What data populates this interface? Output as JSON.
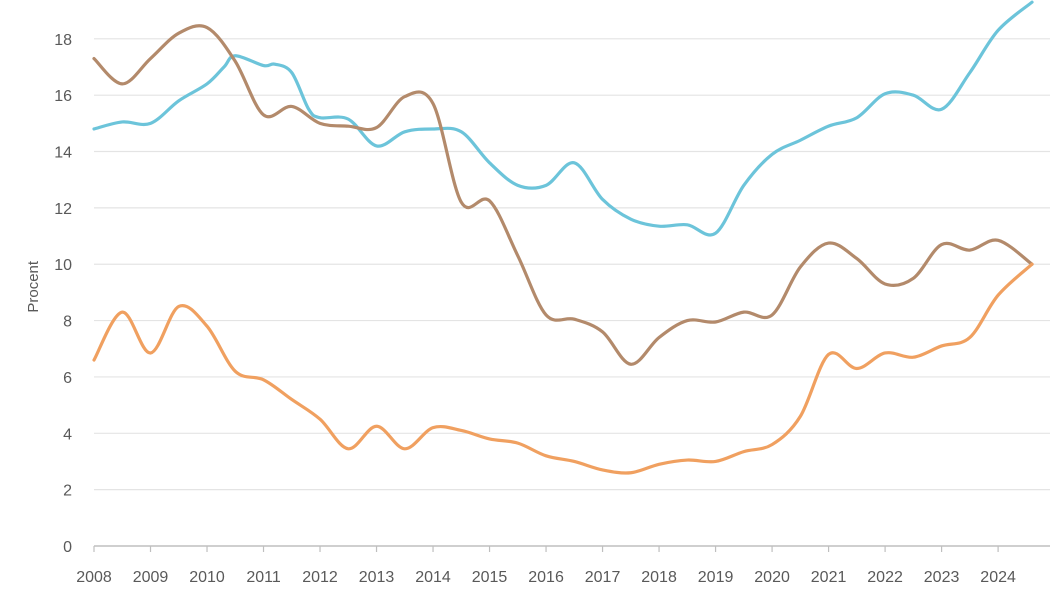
{
  "chart_data": {
    "type": "line",
    "title": "",
    "xlabel": "",
    "ylabel": "Procent",
    "xlim": [
      2008,
      2024.6
    ],
    "ylim": [
      0,
      19.2
    ],
    "xticks": [
      2008,
      2009,
      2010,
      2011,
      2012,
      2013,
      2014,
      2015,
      2016,
      2017,
      2018,
      2019,
      2020,
      2021,
      2022,
      2023,
      2024
    ],
    "xtick_labels": [
      "2008",
      "2009",
      "2010",
      "2011",
      "2012",
      "2013",
      "2014",
      "2015",
      "2016",
      "2017",
      "2018",
      "2019",
      "2020",
      "2021",
      "2022",
      "2023",
      "2024"
    ],
    "yticks": [
      0,
      2,
      4,
      6,
      8,
      10,
      12,
      14,
      16,
      18
    ],
    "ytick_labels": [
      "0",
      "2",
      "4",
      "6",
      "8",
      "10",
      "12",
      "14",
      "16",
      "18"
    ],
    "grid": "horizontal",
    "legend": "none",
    "series": [
      {
        "color": "#6cc4da",
        "points": [
          [
            2008,
            14.8
          ],
          [
            2008.5,
            15.05
          ],
          [
            2009,
            15.0
          ],
          [
            2009.5,
            15.8
          ],
          [
            2010,
            16.4
          ],
          [
            2010.3,
            17.0
          ],
          [
            2010.5,
            17.4
          ],
          [
            2011,
            17.05
          ],
          [
            2011.2,
            17.1
          ],
          [
            2011.5,
            16.8
          ],
          [
            2011.8,
            15.5
          ],
          [
            2012,
            15.2
          ],
          [
            2012.5,
            15.15
          ],
          [
            2013,
            14.2
          ],
          [
            2013.5,
            14.7
          ],
          [
            2014,
            14.8
          ],
          [
            2014.5,
            14.7
          ],
          [
            2015,
            13.6
          ],
          [
            2015.5,
            12.8
          ],
          [
            2016,
            12.8
          ],
          [
            2016.5,
            13.6
          ],
          [
            2017,
            12.3
          ],
          [
            2017.5,
            11.6
          ],
          [
            2018,
            11.35
          ],
          [
            2018.5,
            11.4
          ],
          [
            2019,
            11.1
          ],
          [
            2019.5,
            12.8
          ],
          [
            2020,
            13.9
          ],
          [
            2020.5,
            14.4
          ],
          [
            2021,
            14.9
          ],
          [
            2021.5,
            15.2
          ],
          [
            2022,
            16.05
          ],
          [
            2022.5,
            16.0
          ],
          [
            2023,
            15.5
          ],
          [
            2023.5,
            16.8
          ],
          [
            2024,
            18.3
          ],
          [
            2024.6,
            19.3
          ]
        ]
      },
      {
        "color": "#b38a6b",
        "points": [
          [
            2008,
            17.3
          ],
          [
            2008.5,
            16.4
          ],
          [
            2009,
            17.3
          ],
          [
            2009.5,
            18.2
          ],
          [
            2010,
            18.4
          ],
          [
            2010.5,
            17.2
          ],
          [
            2011,
            15.3
          ],
          [
            2011.5,
            15.6
          ],
          [
            2012,
            15.0
          ],
          [
            2012.5,
            14.9
          ],
          [
            2013,
            14.85
          ],
          [
            2013.5,
            15.95
          ],
          [
            2014,
            15.7
          ],
          [
            2014.5,
            12.2
          ],
          [
            2015,
            12.25
          ],
          [
            2015.5,
            10.3
          ],
          [
            2016,
            8.2
          ],
          [
            2016.5,
            8.05
          ],
          [
            2017,
            7.6
          ],
          [
            2017.5,
            6.45
          ],
          [
            2018,
            7.4
          ],
          [
            2018.5,
            8.0
          ],
          [
            2019,
            7.95
          ],
          [
            2019.5,
            8.3
          ],
          [
            2020,
            8.2
          ],
          [
            2020.5,
            9.9
          ],
          [
            2021,
            10.75
          ],
          [
            2021.5,
            10.2
          ],
          [
            2022,
            9.3
          ],
          [
            2022.5,
            9.5
          ],
          [
            2023,
            10.7
          ],
          [
            2023.5,
            10.5
          ],
          [
            2024,
            10.85
          ],
          [
            2024.6,
            10.0
          ]
        ]
      },
      {
        "color": "#f0a060",
        "points": [
          [
            2008,
            6.6
          ],
          [
            2008.5,
            8.3
          ],
          [
            2009,
            6.85
          ],
          [
            2009.5,
            8.5
          ],
          [
            2010,
            7.8
          ],
          [
            2010.5,
            6.2
          ],
          [
            2011,
            5.9
          ],
          [
            2011.5,
            5.2
          ],
          [
            2012,
            4.5
          ],
          [
            2012.5,
            3.45
          ],
          [
            2013,
            4.25
          ],
          [
            2013.5,
            3.45
          ],
          [
            2014,
            4.2
          ],
          [
            2014.5,
            4.1
          ],
          [
            2015,
            3.8
          ],
          [
            2015.5,
            3.65
          ],
          [
            2016,
            3.2
          ],
          [
            2016.5,
            3.0
          ],
          [
            2017,
            2.7
          ],
          [
            2017.5,
            2.6
          ],
          [
            2018,
            2.9
          ],
          [
            2018.5,
            3.05
          ],
          [
            2019,
            3.0
          ],
          [
            2019.5,
            3.35
          ],
          [
            2020,
            3.6
          ],
          [
            2020.5,
            4.6
          ],
          [
            2021,
            6.8
          ],
          [
            2021.5,
            6.3
          ],
          [
            2022,
            6.85
          ],
          [
            2022.5,
            6.7
          ],
          [
            2023,
            7.1
          ],
          [
            2023.5,
            7.4
          ],
          [
            2024,
            8.9
          ],
          [
            2024.6,
            10.0
          ]
        ]
      }
    ]
  },
  "colors": {
    "grid": "#e4e4e4",
    "axis": "#bfbfbf",
    "tick_text": "#595959"
  }
}
